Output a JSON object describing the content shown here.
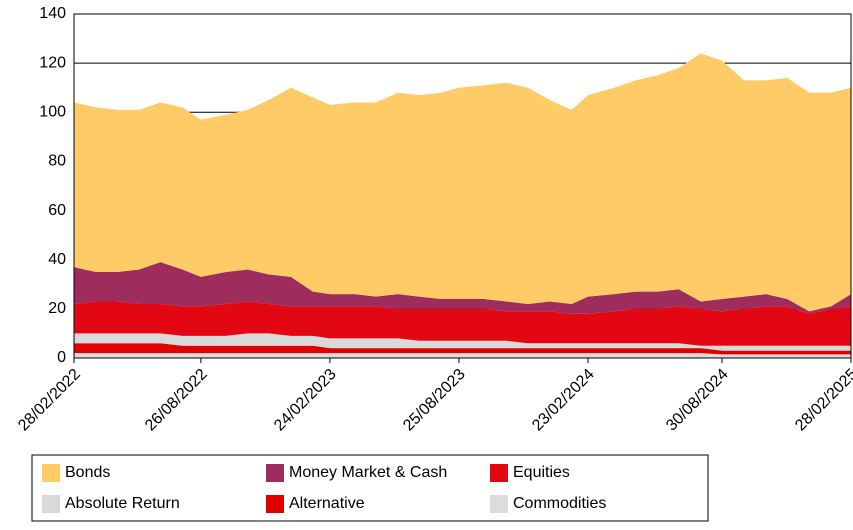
{
  "chart_data": {
    "type": "stacked_area",
    "x": [
      "28/02/2022",
      "31/03/2022",
      "30/04/2022",
      "31/05/2022",
      "30/06/2022",
      "31/07/2022",
      "26/08/2022",
      "30/09/2022",
      "31/10/2022",
      "30/11/2022",
      "31/12/2022",
      "31/01/2023",
      "24/02/2023",
      "31/03/2023",
      "30/04/2023",
      "31/05/2023",
      "30/06/2023",
      "31/07/2023",
      "25/08/2023",
      "30/09/2023",
      "31/10/2023",
      "30/11/2023",
      "31/12/2023",
      "31/01/2024",
      "23/02/2024",
      "31/03/2024",
      "30/04/2024",
      "31/05/2024",
      "30/06/2024",
      "31/07/2024",
      "30/08/2024",
      "30/09/2024",
      "31/10/2024",
      "30/11/2024",
      "31/12/2024",
      "31/01/2025",
      "28/02/2025"
    ],
    "series": [
      {
        "name": "Bonds",
        "color": "#fecb66",
        "values": [
          67,
          67,
          66,
          65,
          65,
          66,
          64,
          64,
          65,
          71,
          77,
          79,
          77,
          78,
          79,
          82,
          82,
          84,
          86,
          87,
          89,
          88,
          82,
          79,
          82,
          84,
          86,
          88,
          90,
          101,
          97,
          88,
          87,
          90,
          89,
          87,
          84
        ]
      },
      {
        "name": "Money Market & Cash",
        "color": "#9e2c5c",
        "values": [
          15,
          12,
          12,
          14,
          17,
          15,
          12,
          13,
          13,
          12,
          12,
          6,
          5,
          5,
          4,
          6,
          5,
          4,
          4,
          4,
          4,
          3,
          4,
          4,
          7,
          7,
          7,
          7,
          7,
          3,
          5,
          5,
          5,
          3,
          1,
          1,
          5
        ]
      },
      {
        "name": "Equities",
        "color": "#e30613",
        "values": [
          12,
          13,
          13,
          12,
          12,
          12,
          12,
          13,
          13,
          12,
          12,
          12,
          13,
          13,
          13,
          12,
          13,
          13,
          13,
          13,
          12,
          13,
          13,
          12,
          12,
          13,
          14,
          14,
          15,
          15,
          14,
          15,
          16,
          16,
          13,
          15,
          16
        ]
      },
      {
        "name": "Absolute Return",
        "color": "#d9d9d9",
        "values": [
          4,
          4,
          4,
          4,
          4,
          4,
          4,
          4,
          5,
          5,
          4,
          4,
          4,
          4,
          4,
          4,
          3,
          3,
          3,
          3,
          3,
          2,
          2,
          2,
          2,
          2,
          2,
          2,
          2,
          1,
          2,
          2,
          2,
          2,
          2,
          2,
          2
        ]
      },
      {
        "name": "Alternative",
        "color": "#e00000",
        "values": [
          4,
          4,
          4,
          4,
          4,
          3,
          3,
          3,
          3,
          3,
          3,
          3,
          2,
          2,
          2,
          2,
          2,
          2,
          2,
          2,
          2,
          2,
          2,
          2,
          2,
          2,
          2,
          2,
          2,
          2,
          1.5,
          1.5,
          1.5,
          1.5,
          1.5,
          1.5,
          1.5
        ]
      },
      {
        "name": "Commodities",
        "color": "#dcdcdc",
        "values": [
          2,
          2,
          2,
          2,
          2,
          2,
          2,
          2,
          2,
          2,
          2,
          2,
          2,
          2,
          2,
          2,
          2,
          2,
          2,
          2,
          2,
          2,
          2,
          2,
          2,
          2,
          2,
          2,
          2,
          2,
          1.5,
          1.5,
          1.5,
          1.5,
          1.5,
          1.5,
          1.5
        ]
      }
    ],
    "xlim": [
      "28/02/2022",
      "28/02/2025"
    ],
    "xticks": [
      "28/02/2022",
      "26/08/2022",
      "24/02/2023",
      "25/08/2023",
      "23/02/2024",
      "30/08/2024",
      "28/02/2025"
    ],
    "ylim": [
      0,
      140
    ],
    "yticks": [
      0,
      20,
      40,
      60,
      80,
      100,
      120,
      140
    ],
    "grid": true
  }
}
